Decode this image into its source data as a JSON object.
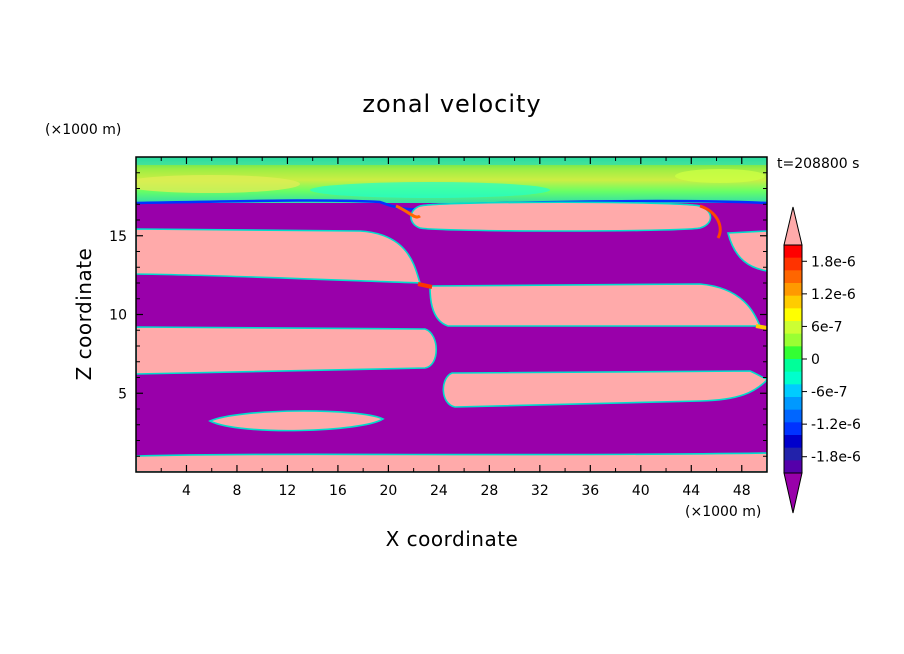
{
  "chart_data": {
    "type": "heatmap",
    "title": "zonal velocity",
    "xlabel": "X coordinate",
    "ylabel": "Z coordinate",
    "x_unit": "(×1000 m)",
    "z_unit": "(×1000 m)",
    "time_label": "t=208800 s",
    "xlim": [
      0,
      50
    ],
    "ylim": [
      0,
      20
    ],
    "x_ticks": [
      4,
      8,
      12,
      16,
      20,
      24,
      28,
      32,
      36,
      40,
      44,
      48
    ],
    "x_tick_labels": [
      "4",
      "8",
      "12",
      "16",
      "20",
      "24",
      "28",
      "32",
      "36",
      "40",
      "44",
      "48"
    ],
    "y_ticks": [
      5,
      10,
      15
    ],
    "y_tick_labels": [
      "5",
      "10",
      "15"
    ],
    "colorbar": {
      "levels": [
        "1.8e-6",
        "1.2e-6",
        "6e-7",
        "0",
        "-6e-7",
        "-1.2e-6",
        "-1.8e-6"
      ],
      "level_values": [
        1.8e-06,
        1.2e-06,
        6e-07,
        0,
        -6e-07,
        -1.2e-06,
        -1.8e-06
      ],
      "range": [
        -2.1e-06,
        2.1e-06
      ],
      "colors_top_to_bottom": [
        "#ff0000",
        "#ff3300",
        "#ff6600",
        "#ff9900",
        "#ffcc00",
        "#ffff00",
        "#ccff33",
        "#99ff33",
        "#33ff33",
        "#00ff99",
        "#00ffcc",
        "#00ccff",
        "#0099ff",
        "#0066ff",
        "#0033ff",
        "#0000cc",
        "#2222aa",
        "#5500aa"
      ],
      "over_color": "#ffaaaa",
      "under_color": "#9900aa"
    },
    "background_color": "#9900aa",
    "positive_color": "#ffaaaa",
    "positive_regions": [
      {
        "label": "upper-right cell",
        "x_range": [
          20,
          44
        ],
        "z_range": [
          15.5,
          16.9
        ]
      },
      {
        "label": "upper-left cell",
        "x_range": [
          0,
          22.5
        ],
        "z_range": [
          12.2,
          15.2
        ]
      },
      {
        "label": "middle-right cell",
        "x_range": [
          23,
          49
        ],
        "z_range": [
          9.2,
          12.0
        ]
      },
      {
        "label": "middle-left cell",
        "x_range": [
          0,
          23.5
        ],
        "z_range": [
          6.2,
          9.2
        ]
      },
      {
        "label": "lower-right cell",
        "x_range": [
          24,
          50
        ],
        "z_range": [
          3.9,
          6.0
        ]
      },
      {
        "label": "small lens",
        "x_range": [
          5.5,
          19.5
        ],
        "z_range": [
          2.6,
          3.9
        ]
      },
      {
        "label": "bottom strip",
        "x_range": [
          0,
          50
        ],
        "z_range": [
          0,
          1.2
        ]
      },
      {
        "label": "right-edge cell",
        "x_range": [
          47,
          50
        ],
        "z_range": [
          12.8,
          15.2
        ]
      }
    ],
    "top_layer": {
      "z_range": [
        17,
        20
      ],
      "description": "weak mixed values (green/cyan/yellow) near 0"
    }
  }
}
